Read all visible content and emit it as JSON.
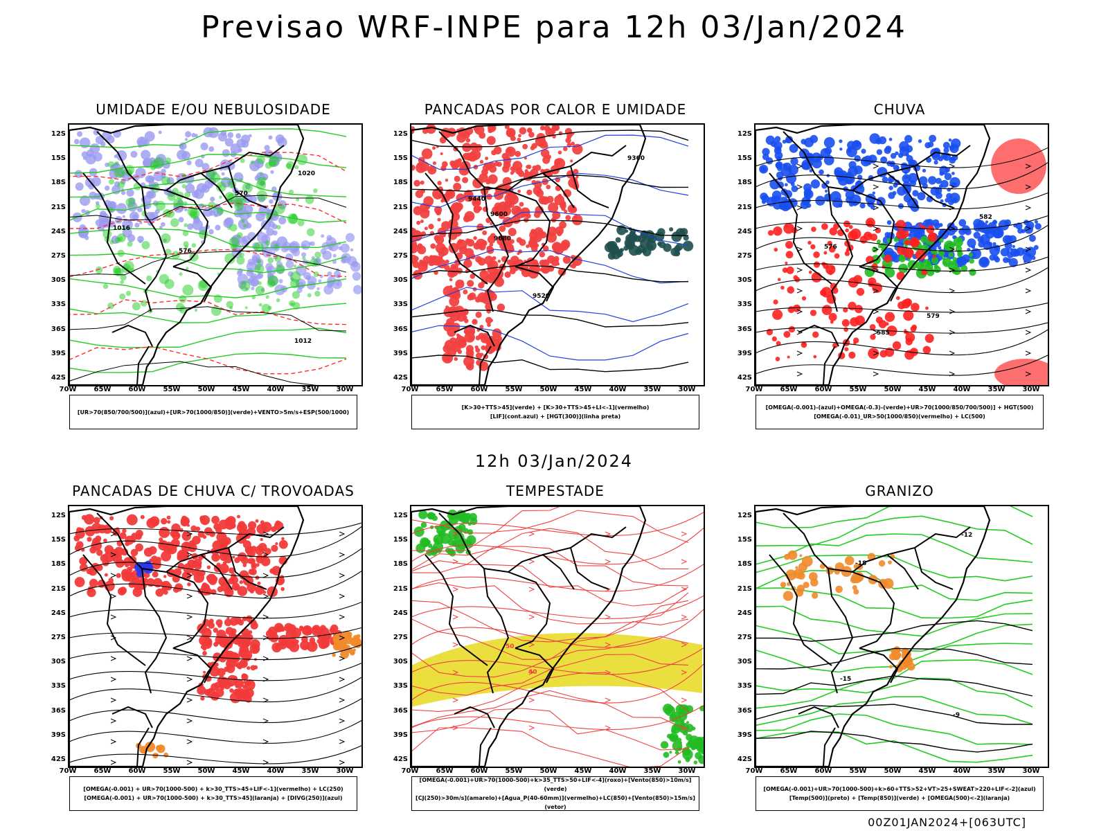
{
  "title": "Previsao WRF-INPE  para 12h 03/Jan/2024",
  "subtitle": "12h 03/Jan/2024",
  "footer": "00Z01JAN2024+[063UTC]",
  "axes": {
    "lat_labels": [
      "12S",
      "15S",
      "18S",
      "21S",
      "24S",
      "27S",
      "30S",
      "33S",
      "36S",
      "39S",
      "42S"
    ],
    "lon_labels": [
      "70W",
      "65W",
      "60W",
      "55W",
      "50W",
      "45W",
      "40W",
      "35W",
      "30W"
    ]
  },
  "panels": [
    {
      "title": "UMIDADE E/OU NEBULOSIDADE",
      "legend": [
        "[UR>70(850/700/500)](azul)+[UR>70(1000/850)](verde)+VENTO>5m/s+ESP(500/1000)"
      ],
      "contour_labels": [
        "1012",
        "1016",
        "1020",
        "576",
        "570"
      ],
      "colors": {
        "humidity_upper": "#9a9af0",
        "humidity_lower": "#22cc22",
        "pressure": "#000000",
        "thickness": "#ff2a2a"
      }
    },
    {
      "title": "PANCADAS POR CALOR E UMIDADE",
      "legend": [
        "[K>30+TTS>45](verde) + [K>30+TTS>45+LI<-1](vermelho)",
        "[LIF](cont.azul) + [HGT(300)](linha preta)"
      ],
      "contour_labels": [
        "9680",
        "9600",
        "9520",
        "9440",
        "9360"
      ],
      "colors": {
        "unstable": "#f24040",
        "stable": "#1f4f4f",
        "lif": "#2040e0"
      }
    },
    {
      "title": "CHUVA",
      "legend": [
        "[OMEGA(-0.001)-(azul)+OMEGA(-0.3)-(verde)+UR>70(1000/850/700/500)] + HGT(500)",
        "[OMEGA(-0.01)_UR>50(1000/850)(vermelho) + LC(500)"
      ],
      "contour_labels": [
        "579",
        "576",
        "582",
        "585"
      ],
      "colors": {
        "omega_weak": "#1a4ff0",
        "omega_strong": "#22bb22",
        "omega_low": "#ff2020"
      }
    },
    {
      "title": "PANCADAS DE CHUVA C/ TROVOADAS",
      "legend": [
        "[OMEGA(-0.001) + UR>70(1000-500) + k>30_TTS>45+LIF<-1](vermelho) + LC(250)",
        "[OMEGA(-0.001) + UR>70(1000-500) + k>30_TTS>45](laranja) + [DIVG(250)](azul)"
      ],
      "contour_labels": [],
      "colors": {
        "storm": "#f23a3a",
        "moderate": "#f08a2a",
        "divergence": "#2a3af0"
      }
    },
    {
      "title": "TEMPESTADE",
      "legend": [
        "[OMEGA(-0.001)+UR>70(1000-500)+k>35_TTS>50+LIF<-4](roxo)+[Vento(850)>10m/s](verde)",
        "[CJ(250)>30m/s](amarelo)+[Agua_P(40-60mm)](vermelho)+LC(850)+[Vento(850)>15m/s](vetor)"
      ],
      "contour_labels": [
        "40",
        "50"
      ],
      "colors": {
        "jet": "#e8dc2a",
        "water": "#f04040",
        "wind": "#22bb22"
      }
    },
    {
      "title": "GRANIZO",
      "legend": [
        "[OMEGA(-0.001)+UR>70(1000-500)+k>60+TTS>52+VT>25+SWEAT>220+LIF<-2](azul)",
        "[Temp(500)](preto) + [Temp(850)](verde) + [OMEGA(500)<-2](laranja)"
      ],
      "contour_labels": [
        "-12",
        "-15",
        "-18",
        "-9"
      ],
      "colors": {
        "temp850": "#22cc22",
        "temp500": "#000000",
        "omega": "#f08a2a"
      }
    }
  ]
}
